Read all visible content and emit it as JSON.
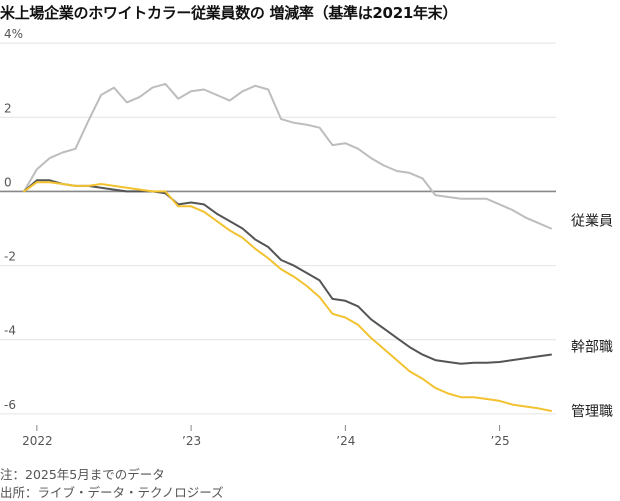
{
  "chart_data": {
    "type": "line",
    "title": "米上場企業のホワイトカラー従業員数の 増減率（基準は2021年末）",
    "xlabel": "",
    "ylabel": "",
    "x_range": [
      "2021-12",
      "2025-05"
    ],
    "ylim": [
      -6.3,
      4.3
    ],
    "y_ticks": [
      {
        "value": 4,
        "label": "4%"
      },
      {
        "value": 2,
        "label": "2"
      },
      {
        "value": 0,
        "label": "0"
      },
      {
        "value": -2,
        "label": "-2"
      },
      {
        "value": -4,
        "label": "-4"
      },
      {
        "value": -6,
        "label": "-6"
      }
    ],
    "x_ticks": [
      {
        "value": "2022-01",
        "label": "2022"
      },
      {
        "value": "2023-01",
        "label": "’23"
      },
      {
        "value": "2024-01",
        "label": "’24"
      },
      {
        "value": "2025-01",
        "label": "’25"
      }
    ],
    "grid": "horizontal",
    "legend": "inline-right",
    "series": [
      {
        "name": "従業員",
        "color": "#bdbdbd",
        "points": [
          [
            "2021-12",
            0.0
          ],
          [
            "2022-01",
            0.6
          ],
          [
            "2022-02",
            0.9
          ],
          [
            "2022-03",
            1.05
          ],
          [
            "2022-04",
            1.15
          ],
          [
            "2022-05",
            1.9
          ],
          [
            "2022-06",
            2.6
          ],
          [
            "2022-07",
            2.8
          ],
          [
            "2022-08",
            2.4
          ],
          [
            "2022-09",
            2.55
          ],
          [
            "2022-10",
            2.8
          ],
          [
            "2022-11",
            2.9
          ],
          [
            "2022-12",
            2.5
          ],
          [
            "2023-01",
            2.7
          ],
          [
            "2023-02",
            2.75
          ],
          [
            "2023-03",
            2.6
          ],
          [
            "2023-04",
            2.45
          ],
          [
            "2023-05",
            2.7
          ],
          [
            "2023-06",
            2.85
          ],
          [
            "2023-07",
            2.75
          ],
          [
            "2023-08",
            1.95
          ],
          [
            "2023-09",
            1.85
          ],
          [
            "2023-10",
            1.8
          ],
          [
            "2023-11",
            1.72
          ],
          [
            "2023-12",
            1.25
          ],
          [
            "2024-01",
            1.3
          ],
          [
            "2024-02",
            1.15
          ],
          [
            "2024-03",
            0.9
          ],
          [
            "2024-04",
            0.7
          ],
          [
            "2024-05",
            0.55
          ],
          [
            "2024-06",
            0.5
          ],
          [
            "2024-07",
            0.35
          ],
          [
            "2024-08",
            -0.1
          ],
          [
            "2024-09",
            -0.15
          ],
          [
            "2024-10",
            -0.2
          ],
          [
            "2024-11",
            -0.2
          ],
          [
            "2024-12",
            -0.2
          ],
          [
            "2025-01",
            -0.35
          ],
          [
            "2025-02",
            -0.5
          ],
          [
            "2025-03",
            -0.7
          ],
          [
            "2025-04",
            -0.85
          ],
          [
            "2025-05",
            -1.0
          ]
        ]
      },
      {
        "name": "幹部職",
        "color": "#555555",
        "points": [
          [
            "2021-12",
            0.0
          ],
          [
            "2022-01",
            0.3
          ],
          [
            "2022-02",
            0.3
          ],
          [
            "2022-03",
            0.2
          ],
          [
            "2022-04",
            0.15
          ],
          [
            "2022-05",
            0.15
          ],
          [
            "2022-06",
            0.1
          ],
          [
            "2022-07",
            0.05
          ],
          [
            "2022-08",
            0.0
          ],
          [
            "2022-09",
            0.0
          ],
          [
            "2022-10",
            0.0
          ],
          [
            "2022-11",
            -0.05
          ],
          [
            "2022-12",
            -0.35
          ],
          [
            "2023-01",
            -0.3
          ],
          [
            "2023-02",
            -0.35
          ],
          [
            "2023-03",
            -0.6
          ],
          [
            "2023-04",
            -0.8
          ],
          [
            "2023-05",
            -1.0
          ],
          [
            "2023-06",
            -1.3
          ],
          [
            "2023-07",
            -1.5
          ],
          [
            "2023-08",
            -1.85
          ],
          [
            "2023-09",
            -2.0
          ],
          [
            "2023-10",
            -2.2
          ],
          [
            "2023-11",
            -2.4
          ],
          [
            "2023-12",
            -2.9
          ],
          [
            "2024-01",
            -2.95
          ],
          [
            "2024-02",
            -3.1
          ],
          [
            "2024-03",
            -3.45
          ],
          [
            "2024-04",
            -3.7
          ],
          [
            "2024-05",
            -3.95
          ],
          [
            "2024-06",
            -4.2
          ],
          [
            "2024-07",
            -4.4
          ],
          [
            "2024-08",
            -4.55
          ],
          [
            "2024-09",
            -4.6
          ],
          [
            "2024-10",
            -4.65
          ],
          [
            "2024-11",
            -4.62
          ],
          [
            "2024-12",
            -4.62
          ],
          [
            "2025-01",
            -4.6
          ],
          [
            "2025-02",
            -4.55
          ],
          [
            "2025-03",
            -4.5
          ],
          [
            "2025-04",
            -4.45
          ],
          [
            "2025-05",
            -4.4
          ]
        ]
      },
      {
        "name": "管理職",
        "color": "#f2c230",
        "points": [
          [
            "2021-12",
            0.0
          ],
          [
            "2022-01",
            0.25
          ],
          [
            "2022-02",
            0.25
          ],
          [
            "2022-03",
            0.2
          ],
          [
            "2022-04",
            0.15
          ],
          [
            "2022-05",
            0.15
          ],
          [
            "2022-06",
            0.2
          ],
          [
            "2022-07",
            0.15
          ],
          [
            "2022-08",
            0.1
          ],
          [
            "2022-09",
            0.05
          ],
          [
            "2022-10",
            0.0
          ],
          [
            "2022-11",
            0.0
          ],
          [
            "2022-12",
            -0.4
          ],
          [
            "2023-01",
            -0.4
          ],
          [
            "2023-02",
            -0.55
          ],
          [
            "2023-03",
            -0.8
          ],
          [
            "2023-04",
            -1.05
          ],
          [
            "2023-05",
            -1.25
          ],
          [
            "2023-06",
            -1.55
          ],
          [
            "2023-07",
            -1.8
          ],
          [
            "2023-08",
            -2.1
          ],
          [
            "2023-09",
            -2.3
          ],
          [
            "2023-10",
            -2.55
          ],
          [
            "2023-11",
            -2.85
          ],
          [
            "2023-12",
            -3.3
          ],
          [
            "2024-01",
            -3.4
          ],
          [
            "2024-02",
            -3.6
          ],
          [
            "2024-03",
            -3.95
          ],
          [
            "2024-04",
            -4.25
          ],
          [
            "2024-05",
            -4.55
          ],
          [
            "2024-06",
            -4.85
          ],
          [
            "2024-07",
            -5.05
          ],
          [
            "2024-08",
            -5.3
          ],
          [
            "2024-09",
            -5.45
          ],
          [
            "2024-10",
            -5.55
          ],
          [
            "2024-11",
            -5.55
          ],
          [
            "2024-12",
            -5.6
          ],
          [
            "2025-01",
            -5.65
          ],
          [
            "2025-02",
            -5.75
          ],
          [
            "2025-03",
            -5.8
          ],
          [
            "2025-04",
            -5.85
          ],
          [
            "2025-05",
            -5.92
          ]
        ]
      }
    ]
  },
  "footer": {
    "note": "注：2025年5月までのデータ",
    "source": "出所：ライブ・データ・テクノロジーズ"
  }
}
